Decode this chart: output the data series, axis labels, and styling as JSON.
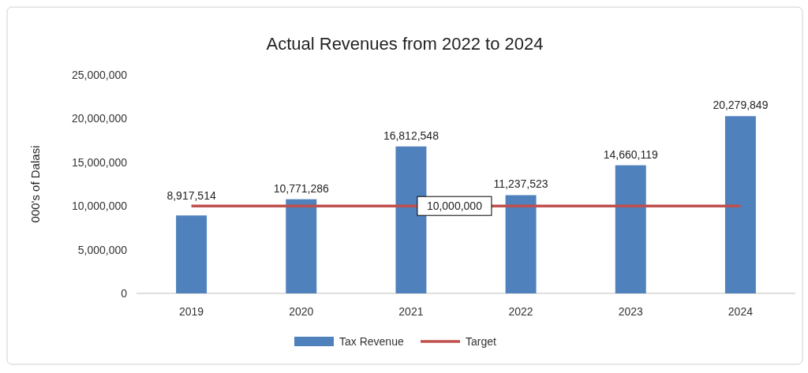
{
  "chart_data": {
    "type": "bar",
    "title": "Actual Revenues from 2022 to 2024",
    "ylabel": "000's of Dalasi",
    "categories": [
      "2019",
      "2020",
      "2021",
      "2022",
      "2023",
      "2024"
    ],
    "series": [
      {
        "name": "Tax Revenue",
        "color": "#4f81bd",
        "values": [
          8917514,
          10771286,
          16812548,
          11237523,
          14660119,
          20279849
        ],
        "value_labels": [
          "8,917,514",
          "10,771,286",
          "16,812,548",
          "11,237,523",
          "14,660,119",
          "20,279,849"
        ]
      },
      {
        "name": "Target",
        "type": "line",
        "color": "#c0504d",
        "values": [
          10000000,
          10000000,
          10000000,
          10000000,
          10000000,
          10000000
        ],
        "value_labels": [
          null,
          null,
          "10,000,000",
          null,
          null,
          null
        ]
      }
    ],
    "ylim": [
      0,
      25000000
    ],
    "yticks": [
      {
        "value": 0,
        "label": "0"
      },
      {
        "value": 5000000,
        "label": "5,000,000"
      },
      {
        "value": 10000000,
        "label": "10,000,000"
      },
      {
        "value": 15000000,
        "label": "15,000,000"
      },
      {
        "value": 20000000,
        "label": "20,000,000"
      },
      {
        "value": 25000000,
        "label": "25,000,000"
      }
    ],
    "grid": false,
    "legend": "bottom"
  }
}
